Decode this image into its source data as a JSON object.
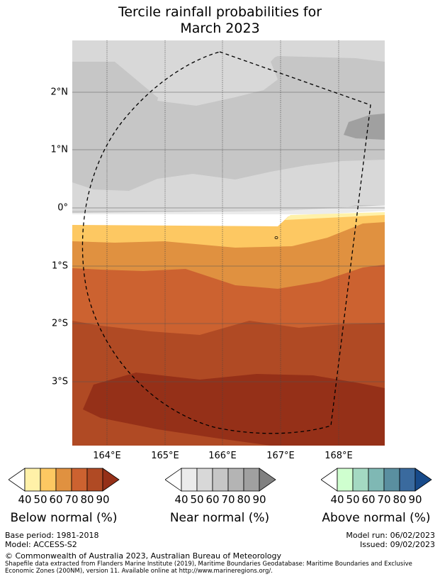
{
  "title": {
    "line1": "Tercile rainfall probabilities for",
    "line2": "March 2023"
  },
  "map": {
    "lat_labels": [
      "2°N",
      "1°N",
      "0°",
      "1°S",
      "2°S",
      "3°S"
    ],
    "lon_labels": [
      "164°E",
      "165°E",
      "166°E",
      "167°E",
      "168°E"
    ],
    "region_outline": "dashed"
  },
  "colorbars": [
    {
      "name": "below",
      "title": "Below normal (%)",
      "ticks": [
        "40",
        "50",
        "60",
        "70",
        "80",
        "90"
      ],
      "colors": [
        "#ffffff",
        "#fff1a8",
        "#fdc862",
        "#e09140",
        "#cc6230",
        "#b04a24",
        "#953018"
      ]
    },
    {
      "name": "near",
      "title": "Near normal (%)",
      "ticks": [
        "40",
        "50",
        "60",
        "70",
        "80",
        "90"
      ],
      "colors": [
        "#ffffff",
        "#ebebeb",
        "#d8d8d8",
        "#c6c6c6",
        "#b4b4b4",
        "#a0a0a0",
        "#808080"
      ]
    },
    {
      "name": "above",
      "title": "Above normal (%)",
      "ticks": [
        "40",
        "50",
        "60",
        "70",
        "80",
        "90"
      ],
      "colors": [
        "#ffffff",
        "#cfffcf",
        "#a4d9c2",
        "#7fb8b4",
        "#5a8fa0",
        "#3a6a9e",
        "#174a8a"
      ]
    }
  ],
  "footer": {
    "base_period": "Base period: 1981-2018",
    "model": "Model: ACCESS-S2",
    "model_run": "Model run: 06/02/2023",
    "issued": "Issued: 09/02/2023",
    "copyright": "© Commonwealth of Australia 2023, Australian Bureau of Meteorology",
    "shapefile": "Shapefile data extracted from Flanders Marine Institute (2019), Maritime Boundaries Geodatabase: Maritime Boundaries and Exclusive Economic Zones (200NM), version 11. Available online at http://www.marineregions.org/."
  }
}
